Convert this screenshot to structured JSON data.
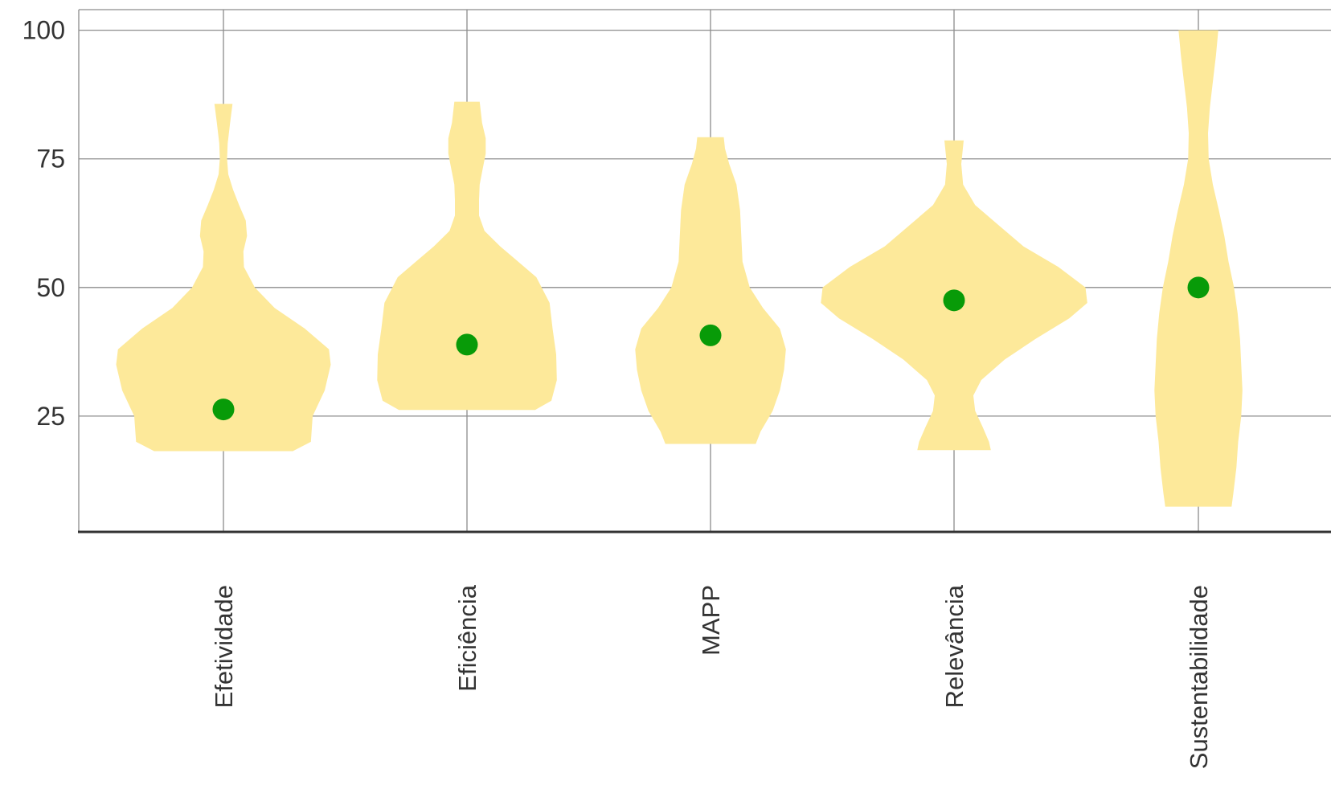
{
  "chart_data": {
    "type": "violin",
    "title": "",
    "xlabel": "",
    "ylabel": "",
    "categories": [
      "Efetividade",
      "Eficiência",
      "MAPP",
      "Relevância",
      "Sustentabilidade"
    ],
    "ylim": [
      2.5,
      104
    ],
    "yticks": [
      25,
      50,
      75,
      100
    ],
    "grid": true,
    "colors": {
      "violin": "#fde99a",
      "point": "#089b08",
      "grid": "#8c8c8c",
      "axis": "#333333"
    },
    "series": [
      {
        "category": "Efetividade",
        "median": 26.3,
        "min": 18.2,
        "max": 85.7,
        "profile": [
          [
            18.2,
            11.5
          ],
          [
            20,
            14.5
          ],
          [
            25,
            14.8
          ],
          [
            30,
            16.8
          ],
          [
            35,
            17.8
          ],
          [
            38,
            17.5
          ],
          [
            42,
            13.5
          ],
          [
            46,
            8.5
          ],
          [
            50,
            5.2
          ],
          [
            54,
            3.4
          ],
          [
            57,
            3.3
          ],
          [
            60,
            3.9
          ],
          [
            63,
            3.7
          ],
          [
            66,
            2.6
          ],
          [
            69,
            1.6
          ],
          [
            72,
            0.8
          ],
          [
            75,
            0.6
          ],
          [
            78,
            0.7
          ],
          [
            82,
            1.1
          ],
          [
            85.7,
            1.5
          ]
        ]
      },
      {
        "category": "Eficiência",
        "median": 38.9,
        "min": 26.2,
        "max": 86.1,
        "profile": [
          [
            26.2,
            11.3
          ],
          [
            28,
            14
          ],
          [
            32,
            14.9
          ],
          [
            37,
            14.8
          ],
          [
            42,
            14.2
          ],
          [
            47,
            13.7
          ],
          [
            52,
            11.5
          ],
          [
            55,
            8.5
          ],
          [
            58,
            5.5
          ],
          [
            61,
            2.9
          ],
          [
            64,
            2
          ],
          [
            67,
            2
          ],
          [
            70,
            2.1
          ],
          [
            73,
            2.6
          ],
          [
            76,
            3.1
          ],
          [
            79,
            3.1
          ],
          [
            82,
            2.5
          ],
          [
            86.1,
            2.1
          ]
        ]
      },
      {
        "category": "MAPP",
        "median": 40.7,
        "min": 19.6,
        "max": 79.2,
        "profile": [
          [
            19.6,
            7.5
          ],
          [
            22,
            8.3
          ],
          [
            26,
            10.3
          ],
          [
            30,
            11.5
          ],
          [
            34,
            12.2
          ],
          [
            38,
            12.5
          ],
          [
            42,
            11.5
          ],
          [
            46,
            8.7
          ],
          [
            50,
            6.5
          ],
          [
            55,
            5.3
          ],
          [
            60,
            5.1
          ],
          [
            65,
            4.9
          ],
          [
            70,
            4.3
          ],
          [
            74,
            3.1
          ],
          [
            77,
            2.4
          ],
          [
            79.2,
            2.2
          ]
        ]
      },
      {
        "category": "Relevância",
        "median": 47.5,
        "min": 18.4,
        "max": 78.6,
        "profile": [
          [
            18.4,
            6.1
          ],
          [
            20,
            5.8
          ],
          [
            23,
            4.7
          ],
          [
            26,
            3.5
          ],
          [
            29,
            3.2
          ],
          [
            32,
            4.5
          ],
          [
            36,
            8.4
          ],
          [
            40,
            13.5
          ],
          [
            44,
            19.1
          ],
          [
            47,
            22.1
          ],
          [
            50,
            21.8
          ],
          [
            54,
            17.3
          ],
          [
            58,
            11.5
          ],
          [
            62,
            7.5
          ],
          [
            66,
            3.5
          ],
          [
            70,
            1.5
          ],
          [
            74,
            1.2
          ],
          [
            78.6,
            1.6
          ]
        ]
      },
      {
        "category": "Sustentabilidade",
        "median": 50.0,
        "min": 7.4,
        "max": 100,
        "profile": [
          [
            7.4,
            5.5
          ],
          [
            10,
            5.8
          ],
          [
            15,
            6.3
          ],
          [
            20,
            6.6
          ],
          [
            25,
            7.1
          ],
          [
            30,
            7.3
          ],
          [
            35,
            7.1
          ],
          [
            40,
            6.9
          ],
          [
            45,
            6.5
          ],
          [
            50,
            5.9
          ],
          [
            55,
            5
          ],
          [
            60,
            4.3
          ],
          [
            65,
            3.4
          ],
          [
            70,
            2.4
          ],
          [
            75,
            1.7
          ],
          [
            80,
            1.6
          ],
          [
            85,
            1.9
          ],
          [
            90,
            2.4
          ],
          [
            95,
            2.9
          ],
          [
            100,
            3.3
          ]
        ]
      }
    ]
  }
}
